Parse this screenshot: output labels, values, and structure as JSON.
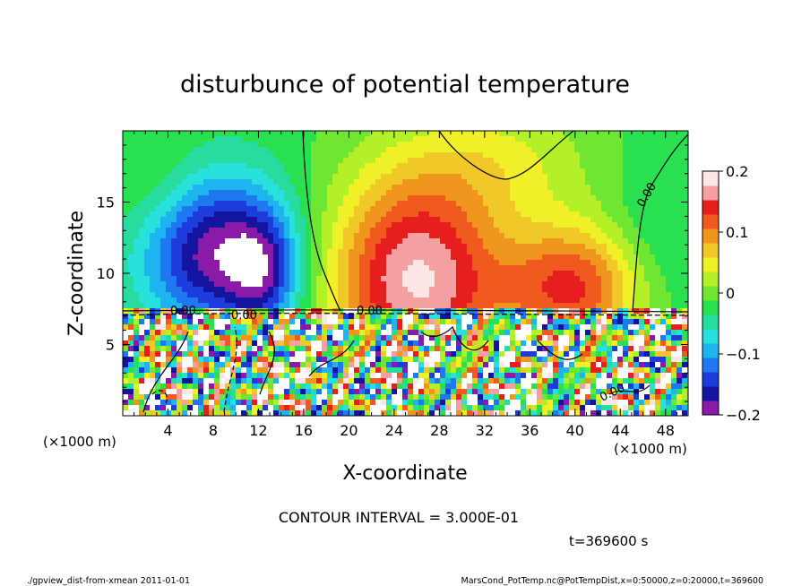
{
  "chart_data": {
    "type": "heatmap",
    "title": "disturbunce of potential temperature",
    "xlabel": "X-coordinate",
    "ylabel": "Z-coordinate",
    "x_unit_left": "(×1000 m)",
    "x_unit_right": "(×1000 m)",
    "xlim": [
      0,
      50
    ],
    "ylim": [
      0,
      20
    ],
    "x_ticks": [
      4,
      8,
      12,
      16,
      20,
      24,
      28,
      32,
      36,
      40,
      44,
      48
    ],
    "y_ticks": [
      5,
      10,
      15
    ],
    "colorbar": {
      "min": -0.2,
      "max": 0.2,
      "tick_values": [
        0.2,
        0.1,
        0,
        -0.1,
        -0.2
      ],
      "tick_labels": [
        "0.2",
        "0.1",
        "0",
        "−0.1",
        "−0.2"
      ],
      "colors": [
        "#8a1aa8",
        "#1414a0",
        "#1e3cdc",
        "#1e78f0",
        "#1eb4f0",
        "#28e0dc",
        "#28dca0",
        "#28e050",
        "#6ee632",
        "#b4f028",
        "#f0f028",
        "#f0c828",
        "#f0961e",
        "#f05a1e",
        "#e61e1e",
        "#f5a0a0",
        "#ffe6e6"
      ]
    },
    "contour_labels": [
      "0.00",
      "0.00",
      "0.00",
      "0.00",
      "0.00"
    ],
    "contour_interval_text": "CONTOUR INTERVAL = 3.000E-01",
    "time_text": "t=369600 s"
  },
  "footer": {
    "left": "./gpview_dist-from-xmean  2011-01-01",
    "right": "MarsCond_PotTemp.nc@PotTempDist,x=0:50000,z=0:20000,t=369600"
  }
}
